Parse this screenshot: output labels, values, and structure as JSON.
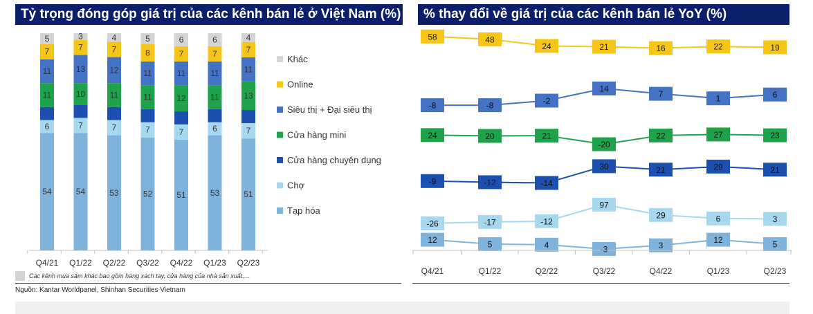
{
  "left": {
    "title": "Tỷ trọng đóng góp giá trị của các kênh bán lẻ ở Việt Nam (%)",
    "footnote": "Các kênh mua sắm khác bao gồm hàng xách tay, cửa hàng của nhà sản xuất,…"
  },
  "right": {
    "title": "% thay đổi về giá trị của các kênh bán lẻ YoY (%)"
  },
  "source": "Nguồn: Kantar Worldpanel, Shinhan Securities Vietnam",
  "chart_data": [
    {
      "type": "bar",
      "stacked": true,
      "title": "Tỷ trọng đóng góp giá trị của các kênh bán lẻ ở Việt Nam (%)",
      "categories": [
        "Q4/21",
        "Q1/22",
        "Q2/22",
        "Q3/22",
        "Q4/22",
        "Q1/23",
        "Q2/23"
      ],
      "legend_position": "right",
      "series": [
        {
          "name": "Tạp hóa",
          "color": "#7fb3dc",
          "values": [
            54,
            54,
            53,
            52,
            51,
            53,
            51
          ]
        },
        {
          "name": "Chợ",
          "color": "#a8d8f0",
          "values": [
            6,
            7,
            7,
            7,
            7,
            6,
            7
          ]
        },
        {
          "name": "Cửa hàng chuyên dụng",
          "color": "#1d4fb0",
          "values": [
            6,
            6,
            6,
            6,
            6,
            6,
            6
          ]
        },
        {
          "name": "Cửa hàng mini",
          "color": "#1ea34a",
          "values": [
            11,
            10,
            11,
            11,
            12,
            11,
            13
          ]
        },
        {
          "name": "Siêu thị + Đại siêu thị",
          "color": "#4472c4",
          "values": [
            11,
            13,
            12,
            11,
            11,
            11,
            11
          ]
        },
        {
          "name": "Online",
          "color": "#f5c518",
          "values": [
            7,
            7,
            7,
            8,
            7,
            7,
            7
          ]
        },
        {
          "name": "Khác",
          "color": "#d4d4d4",
          "values": [
            5,
            3,
            4,
            5,
            6,
            6,
            4
          ]
        }
      ],
      "legend_order": [
        "Khác",
        "Online",
        "Siêu thị + Đại siêu thị",
        "Cửa hàng mini",
        "Cửa hàng chuyên dụng",
        "Chợ",
        "Tạp hóa"
      ],
      "label_hidden_series": [
        "Cửa hàng chuyên dụng"
      ]
    },
    {
      "type": "line",
      "title": "% thay đổi về giá trị của các kênh bán lẻ YoY (%)",
      "categories": [
        "Q4/21",
        "Q1/22",
        "Q2/22",
        "Q3/22",
        "Q4/22",
        "Q1/23",
        "Q2/23"
      ],
      "series": [
        {
          "key": "online",
          "color": "#f5c518",
          "label_text": "#222",
          "values": [
            58,
            48,
            24,
            21,
            16,
            22,
            19
          ]
        },
        {
          "key": "sieuthi",
          "color": "#4472c4",
          "label_text": "#111",
          "values": [
            -8,
            -8,
            -2,
            14,
            7,
            1,
            6
          ]
        },
        {
          "key": "mini",
          "color": "#1ea34a",
          "label_text": "#111",
          "values": [
            24,
            20,
            21,
            -20,
            22,
            27,
            23
          ]
        },
        {
          "key": "chuyendung",
          "color": "#1d4fb0",
          "label_text": "#111",
          "values": [
            -9,
            -12,
            -14,
            30,
            21,
            29,
            21
          ]
        },
        {
          "key": "cho",
          "color": "#a8d8f0",
          "label_text": "#111",
          "values": [
            -26,
            -17,
            -12,
            97,
            29,
            6,
            3
          ]
        },
        {
          "key": "taphoa",
          "color": "#7fb3dc",
          "label_text": "#111",
          "values": [
            12,
            5,
            4,
            -3,
            3,
            12,
            5
          ]
        }
      ]
    }
  ]
}
